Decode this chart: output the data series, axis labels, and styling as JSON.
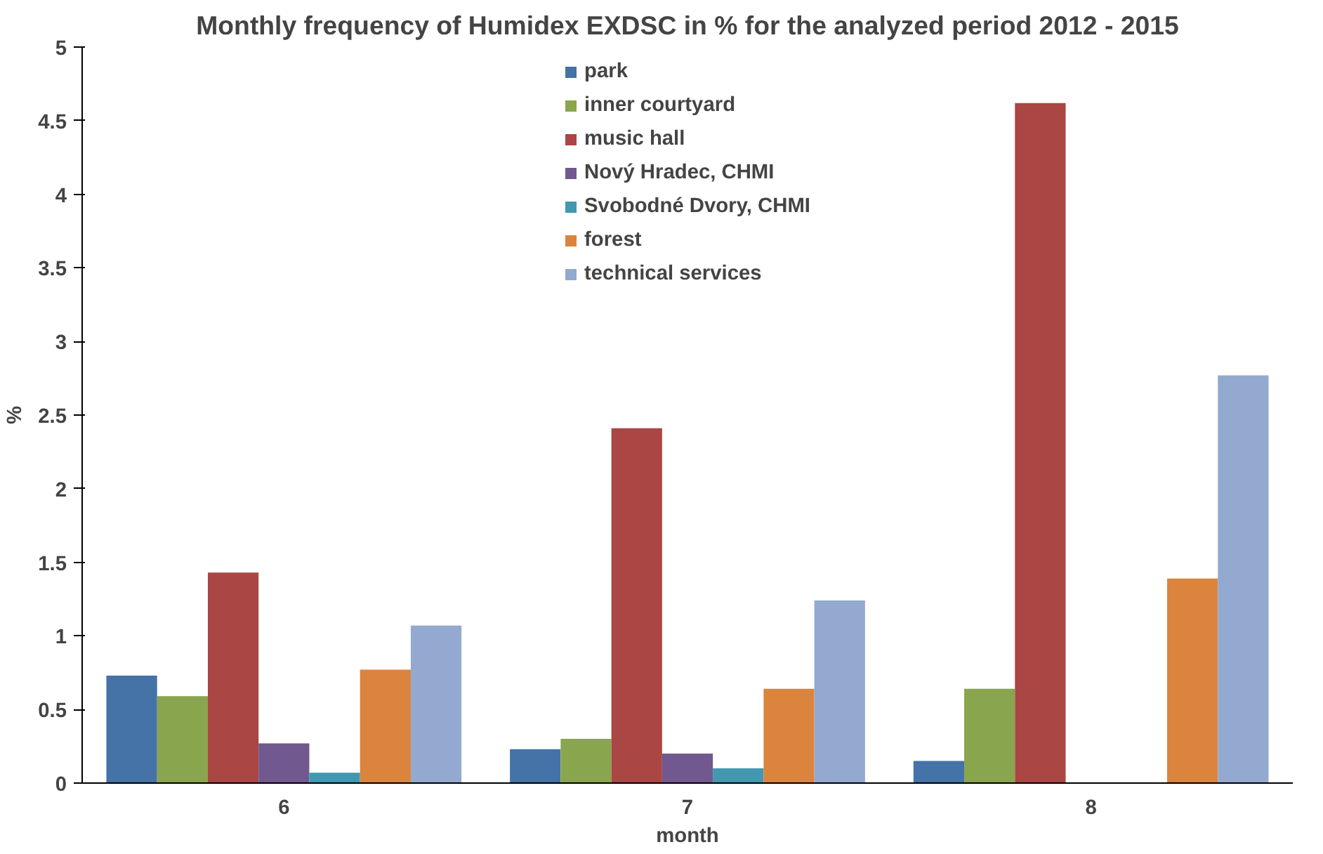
{
  "chart_data": {
    "type": "bar",
    "title": "Monthly frequency of Humidex EXDSC in % for the analyzed period 2012 - 2015",
    "xlabel": "month",
    "ylabel": "%",
    "categories": [
      "6",
      "7",
      "8"
    ],
    "series": [
      {
        "name": "park",
        "color": "#4572a7",
        "values": [
          0.73,
          0.23,
          0.15
        ]
      },
      {
        "name": "inner courtyard",
        "color": "#89a54e",
        "values": [
          0.59,
          0.3,
          0.64
        ]
      },
      {
        "name": "music hall",
        "color": "#aa4643",
        "values": [
          1.43,
          2.41,
          4.62
        ]
      },
      {
        "name": "Nový Hradec, CHMI",
        "color": "#71588f",
        "values": [
          0.27,
          0.2,
          0
        ]
      },
      {
        "name": "Svobodné Dvory, CHMI",
        "color": "#4198af",
        "values": [
          0.07,
          0.1,
          0
        ]
      },
      {
        "name": "forest",
        "color": "#db843d",
        "values": [
          0.77,
          0.64,
          1.39
        ]
      },
      {
        "name": "technical services",
        "color": "#93a9cf",
        "values": [
          1.07,
          1.24,
          2.77
        ]
      }
    ],
    "ylim": [
      0,
      5
    ],
    "yticks": [
      0,
      0.5,
      1,
      1.5,
      2,
      2.5,
      3,
      3.5,
      4,
      4.5,
      5
    ],
    "grid": false,
    "legend": "top"
  }
}
